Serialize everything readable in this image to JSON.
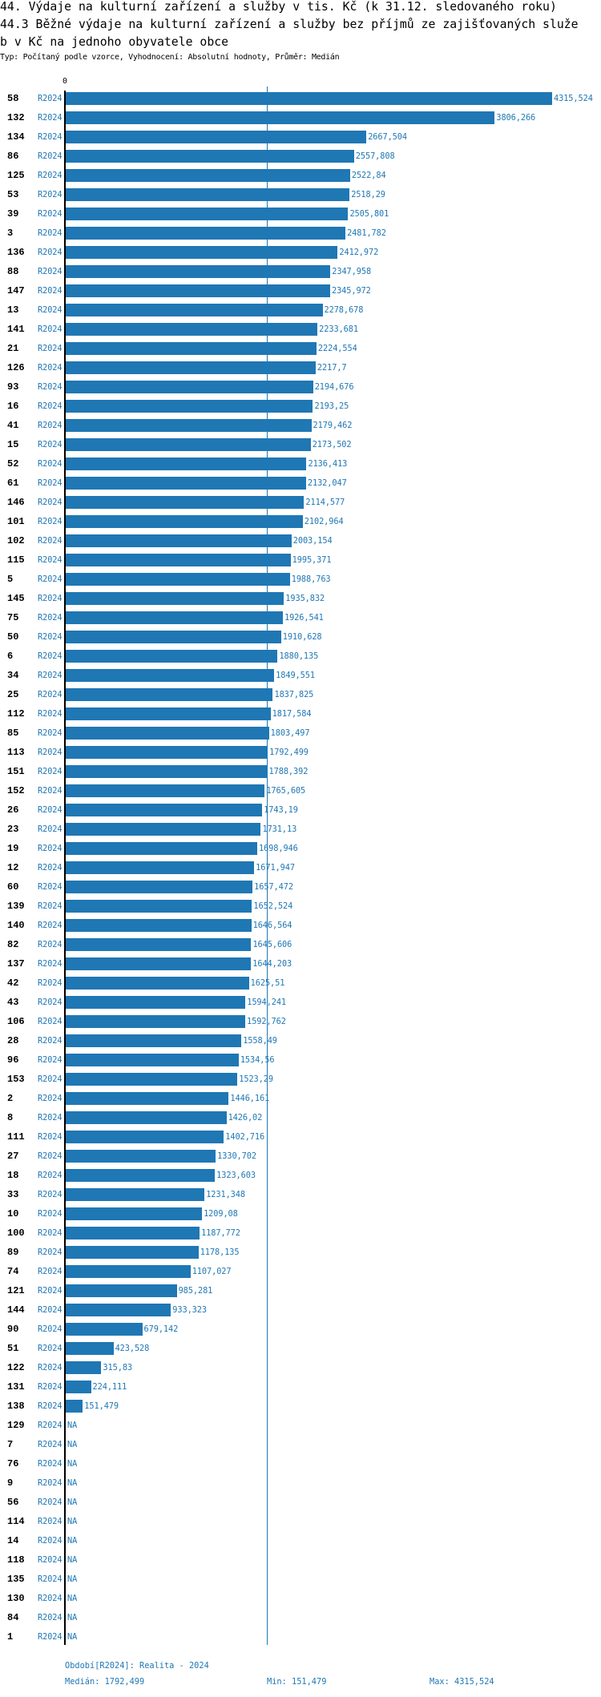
{
  "header": {
    "title_line1": "44. Výdaje na kulturní zařízení a služby v tis. Kč (k 31.12. sledovaného roku)",
    "title_line2": "44.3 Běžné výdaje na kulturní zařízení a služby bez příjmů ze zajišťovaných služe",
    "title_line3": "b v Kč na jednoho obyvatele obce",
    "typ": "Typ: Počítaný podle vzorce, Vyhodnocení: Absolutní hodnoty, Průměr: Medián"
  },
  "footer": {
    "period": "Období[R2024]: Realita - 2024",
    "median": "Medián: 1792,499",
    "min": "Min: 151,479",
    "max": "Max: 4315,524"
  },
  "colors": {
    "bar": "#1f77b4",
    "text": "#1f77b4",
    "axis": "#000000"
  },
  "chart_data": {
    "type": "bar",
    "orientation": "horizontal",
    "axis_tick_labels": [
      "0"
    ],
    "xlim": [
      0,
      4315.524
    ],
    "median": 1792.499,
    "series_name": "R2024",
    "rows": [
      [
        "58",
        "R2024",
        "4315,524"
      ],
      [
        "132",
        "R2024",
        "3806,266"
      ],
      [
        "134",
        "R2024",
        "2667,504"
      ],
      [
        "86",
        "R2024",
        "2557,808"
      ],
      [
        "125",
        "R2024",
        "2522,84"
      ],
      [
        "53",
        "R2024",
        "2518,29"
      ],
      [
        "39",
        "R2024",
        "2505,801"
      ],
      [
        "3",
        "R2024",
        "2481,782"
      ],
      [
        "136",
        "R2024",
        "2412,972"
      ],
      [
        "88",
        "R2024",
        "2347,958"
      ],
      [
        "147",
        "R2024",
        "2345,972"
      ],
      [
        "13",
        "R2024",
        "2278,678"
      ],
      [
        "141",
        "R2024",
        "2233,681"
      ],
      [
        "21",
        "R2024",
        "2224,554"
      ],
      [
        "126",
        "R2024",
        "2217,7"
      ],
      [
        "93",
        "R2024",
        "2194,676"
      ],
      [
        "16",
        "R2024",
        "2193,25"
      ],
      [
        "41",
        "R2024",
        "2179,462"
      ],
      [
        "15",
        "R2024",
        "2173,502"
      ],
      [
        "52",
        "R2024",
        "2136,413"
      ],
      [
        "61",
        "R2024",
        "2132,047"
      ],
      [
        "146",
        "R2024",
        "2114,577"
      ],
      [
        "101",
        "R2024",
        "2102,964"
      ],
      [
        "102",
        "R2024",
        "2003,154"
      ],
      [
        "115",
        "R2024",
        "1995,371"
      ],
      [
        "5",
        "R2024",
        "1988,763"
      ],
      [
        "145",
        "R2024",
        "1935,832"
      ],
      [
        "75",
        "R2024",
        "1926,541"
      ],
      [
        "50",
        "R2024",
        "1910,628"
      ],
      [
        "6",
        "R2024",
        "1880,135"
      ],
      [
        "34",
        "R2024",
        "1849,551"
      ],
      [
        "25",
        "R2024",
        "1837,825"
      ],
      [
        "112",
        "R2024",
        "1817,584"
      ],
      [
        "85",
        "R2024",
        "1803,497"
      ],
      [
        "113",
        "R2024",
        "1792,499"
      ],
      [
        "151",
        "R2024",
        "1788,392"
      ],
      [
        "152",
        "R2024",
        "1765,605"
      ],
      [
        "26",
        "R2024",
        "1743,19"
      ],
      [
        "23",
        "R2024",
        "1731,13"
      ],
      [
        "19",
        "R2024",
        "1698,946"
      ],
      [
        "12",
        "R2024",
        "1671,947"
      ],
      [
        "60",
        "R2024",
        "1657,472"
      ],
      [
        "139",
        "R2024",
        "1652,524"
      ],
      [
        "140",
        "R2024",
        "1646,564"
      ],
      [
        "82",
        "R2024",
        "1645,606"
      ],
      [
        "137",
        "R2024",
        "1644,203"
      ],
      [
        "42",
        "R2024",
        "1625,51"
      ],
      [
        "43",
        "R2024",
        "1594,241"
      ],
      [
        "106",
        "R2024",
        "1592,762"
      ],
      [
        "28",
        "R2024",
        "1558,49"
      ],
      [
        "96",
        "R2024",
        "1534,56"
      ],
      [
        "153",
        "R2024",
        "1523,29"
      ],
      [
        "2",
        "R2024",
        "1446,161"
      ],
      [
        "8",
        "R2024",
        "1426,02"
      ],
      [
        "111",
        "R2024",
        "1402,716"
      ],
      [
        "27",
        "R2024",
        "1330,702"
      ],
      [
        "18",
        "R2024",
        "1323,603"
      ],
      [
        "33",
        "R2024",
        "1231,348"
      ],
      [
        "10",
        "R2024",
        "1209,08"
      ],
      [
        "100",
        "R2024",
        "1187,772"
      ],
      [
        "89",
        "R2024",
        "1178,135"
      ],
      [
        "74",
        "R2024",
        "1107,027"
      ],
      [
        "121",
        "R2024",
        "985,281"
      ],
      [
        "144",
        "R2024",
        "933,323"
      ],
      [
        "90",
        "R2024",
        "679,142"
      ],
      [
        "51",
        "R2024",
        "423,528"
      ],
      [
        "122",
        "R2024",
        "315,83"
      ],
      [
        "131",
        "R2024",
        "224,111"
      ],
      [
        "138",
        "R2024",
        "151,479"
      ],
      [
        "129",
        "R2024",
        "NA"
      ],
      [
        "7",
        "R2024",
        "NA"
      ],
      [
        "76",
        "R2024",
        "NA"
      ],
      [
        "9",
        "R2024",
        "NA"
      ],
      [
        "56",
        "R2024",
        "NA"
      ],
      [
        "114",
        "R2024",
        "NA"
      ],
      [
        "14",
        "R2024",
        "NA"
      ],
      [
        "118",
        "R2024",
        "NA"
      ],
      [
        "135",
        "R2024",
        "NA"
      ],
      [
        "130",
        "R2024",
        "NA"
      ],
      [
        "84",
        "R2024",
        "NA"
      ],
      [
        "1",
        "R2024",
        "NA"
      ]
    ]
  }
}
